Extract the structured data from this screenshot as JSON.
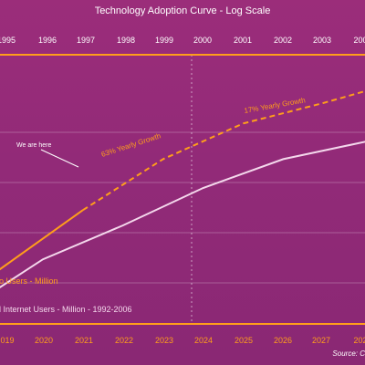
{
  "chart_data": {
    "type": "line",
    "title": "Technology Adoption Curve - Log Scale",
    "scale": "log",
    "top_axis": {
      "ticks": [
        "1995",
        "1996",
        "1997",
        "1998",
        "1999",
        "2000",
        "2001",
        "2002",
        "2003",
        "200"
      ]
    },
    "bottom_axis": {
      "ticks": [
        "019",
        "2020",
        "2021",
        "2022",
        "2023",
        "2024",
        "2025",
        "2026",
        "2027",
        "202"
      ]
    },
    "grid": true,
    "legend": [
      {
        "label": "o Users - Million",
        "color": "#ff9e1b"
      },
      {
        "label": "l Internet Users - Million - 1992-2006",
        "color": "#f4d8ec"
      }
    ],
    "annotations": {
      "we_are_here": "We are here",
      "growth_63": "63% Yearly Growth",
      "growth_17": "17% Yearly Growth"
    },
    "source": "Source: C",
    "series": [
      {
        "color": "#ff9e1b",
        "values": [
          {
            "x": 2018.5,
            "y": 0.0
          },
          {
            "x": 2021.0,
            "y": 0.42
          },
          {
            "x": 2023.0,
            "y": 0.72
          },
          {
            "x": 2025.0,
            "y": 0.93
          },
          {
            "x": 2027.0,
            "y": 1.05
          },
          {
            "x": 2028.2,
            "y": 1.13
          }
        ],
        "style_segments": [
          {
            "from": 2018.5,
            "to": 2021.0,
            "dash": "solid"
          },
          {
            "from": 2021.0,
            "to": 2028.2,
            "dash": "dashed"
          }
        ]
      },
      {
        "color": "#f4d8ec",
        "values": [
          {
            "x": 2018.5,
            "y": -0.1
          },
          {
            "x": 2020.0,
            "y": 0.13
          },
          {
            "x": 2022.0,
            "y": 0.33
          },
          {
            "x": 2024.0,
            "y": 0.55
          },
          {
            "x": 2026.0,
            "y": 0.72
          },
          {
            "x": 2028.2,
            "y": 0.83
          }
        ]
      }
    ],
    "colors": {
      "axis": "#ff9e1b",
      "text": "#ffffff",
      "grid": "rgba(255,255,255,0.25)"
    }
  }
}
